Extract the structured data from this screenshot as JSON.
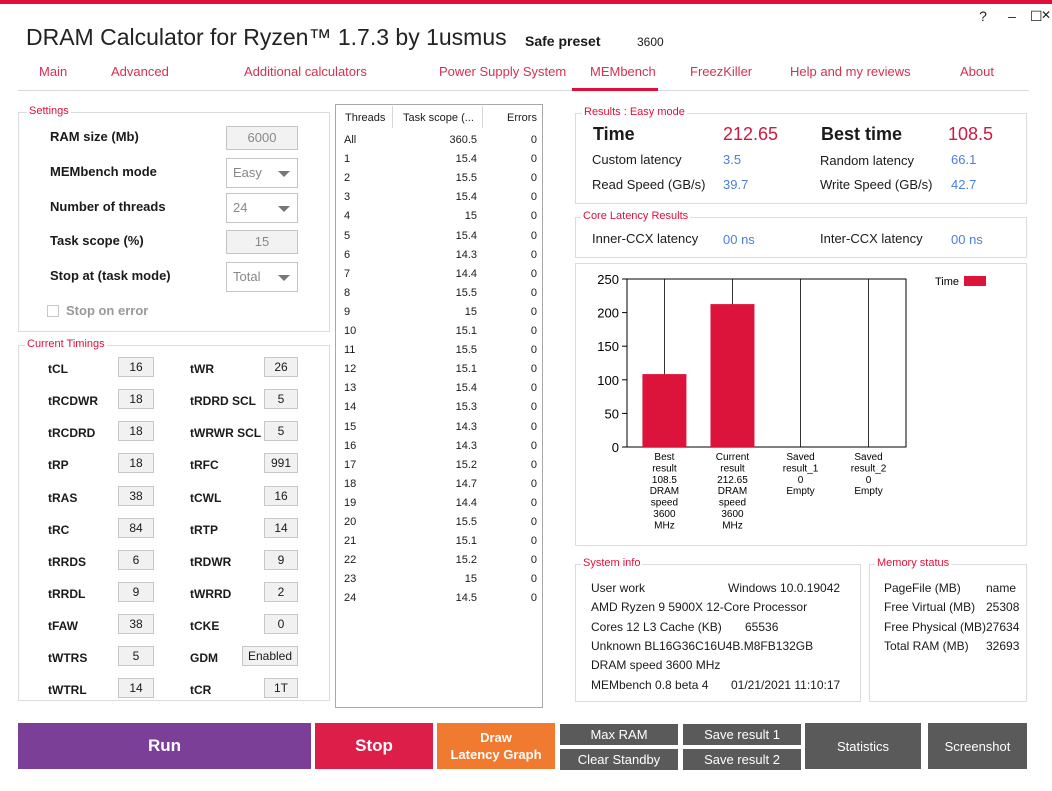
{
  "app": {
    "title": "DRAM Calculator for Ryzen™ 1.7.3 by 1usmus",
    "preset_label": "Safe preset",
    "preset_value": "3600",
    "window_controls": [
      "?",
      "–",
      "☐",
      "✕"
    ]
  },
  "nav": [
    "Main",
    "Advanced",
    "Additional calculators",
    "Power Supply System",
    "MEMbench",
    "FreezKiller",
    "Help and my reviews",
    "About"
  ],
  "nav_active": "MEMbench",
  "settings": {
    "title": "Settings",
    "ram_size_label": "RAM size (Mb)",
    "ram_size": "6000",
    "mode_label": "MEMbench mode",
    "mode": "Easy",
    "threads_label": "Number of threads",
    "threads": "24",
    "scope_label": "Task scope (%)",
    "scope": "15",
    "stop_label": "Stop at (task mode)",
    "stop": "Total",
    "stop_on_error": "Stop on error"
  },
  "timings": {
    "title": "Current Timings",
    "left": [
      {
        "label": "tCL",
        "value": "16"
      },
      {
        "label": "tRCDWR",
        "value": "18"
      },
      {
        "label": "tRCDRD",
        "value": "18"
      },
      {
        "label": "tRP",
        "value": "18"
      },
      {
        "label": "tRAS",
        "value": "38"
      },
      {
        "label": "tRC",
        "value": "84"
      },
      {
        "label": "tRRDS",
        "value": "6"
      },
      {
        "label": "tRRDL",
        "value": "9"
      },
      {
        "label": "tFAW",
        "value": "38"
      },
      {
        "label": "tWTRS",
        "value": "5"
      },
      {
        "label": "tWTRL",
        "value": "14"
      }
    ],
    "right": [
      {
        "label": "tWR",
        "value": "26"
      },
      {
        "label": "tRDRD SCL",
        "value": "5"
      },
      {
        "label": "tWRWR SCL",
        "value": "5"
      },
      {
        "label": "tRFC",
        "value": "991"
      },
      {
        "label": "tCWL",
        "value": "16"
      },
      {
        "label": "tRTP",
        "value": "14"
      },
      {
        "label": "tRDWR",
        "value": "9"
      },
      {
        "label": "tWRRD",
        "value": "2"
      },
      {
        "label": "tCKE",
        "value": "0"
      },
      {
        "label": "GDM",
        "value": "Enabled"
      },
      {
        "label": "tCR",
        "value": "1T"
      }
    ]
  },
  "threads_table": {
    "headers": [
      "Threads",
      "Task scope (...",
      "Errors"
    ],
    "rows": [
      [
        "All",
        "360.5",
        "0"
      ],
      [
        "1",
        "15.4",
        "0"
      ],
      [
        "2",
        "15.5",
        "0"
      ],
      [
        "3",
        "15.4",
        "0"
      ],
      [
        "4",
        "15",
        "0"
      ],
      [
        "5",
        "15.4",
        "0"
      ],
      [
        "6",
        "14.3",
        "0"
      ],
      [
        "7",
        "14.4",
        "0"
      ],
      [
        "8",
        "15.5",
        "0"
      ],
      [
        "9",
        "15",
        "0"
      ],
      [
        "10",
        "15.1",
        "0"
      ],
      [
        "11",
        "15.5",
        "0"
      ],
      [
        "12",
        "15.1",
        "0"
      ],
      [
        "13",
        "15.4",
        "0"
      ],
      [
        "14",
        "15.3",
        "0"
      ],
      [
        "15",
        "14.3",
        "0"
      ],
      [
        "16",
        "14.3",
        "0"
      ],
      [
        "17",
        "15.2",
        "0"
      ],
      [
        "18",
        "14.7",
        "0"
      ],
      [
        "19",
        "14.4",
        "0"
      ],
      [
        "20",
        "15.5",
        "0"
      ],
      [
        "21",
        "15.1",
        "0"
      ],
      [
        "22",
        "15.2",
        "0"
      ],
      [
        "23",
        "15",
        "0"
      ],
      [
        "24",
        "14.5",
        "0"
      ]
    ]
  },
  "results": {
    "title": "Results : Easy mode",
    "time_label": "Time",
    "time_value": "212.65",
    "best_label": "Best time",
    "best_value": "108.5",
    "custom_latency_label": "Custom latency",
    "custom_latency": "3.5",
    "random_latency_label": "Random latency",
    "random_latency": "66.1",
    "read_label": "Read Speed (GB/s)",
    "read_value": "39.7",
    "write_label": "Write Speed (GB/s)",
    "write_value": "42.7"
  },
  "core_latency": {
    "title": "Core Latency Results",
    "inner_label": "Inner-CCX latency",
    "inner_value": "00 ns",
    "inter_label": "Inter-CCX latency",
    "inter_value": "00 ns"
  },
  "chart_data": {
    "type": "bar",
    "categories": [
      [
        "Best",
        "result",
        "108.5",
        "DRAM",
        "speed",
        "3600",
        "MHz"
      ],
      [
        "Current",
        "result",
        "212.65",
        "DRAM",
        "speed",
        "3600",
        "MHz"
      ],
      [
        "Saved",
        "result_1",
        "0",
        "Empty"
      ],
      [
        "Saved",
        "result_2",
        "0",
        "Empty"
      ]
    ],
    "values": [
      108.5,
      212.65,
      0,
      0
    ],
    "legend": "Time",
    "legend_position": "top-right",
    "color": "#dc143c",
    "ylim": [
      0,
      250
    ],
    "yticks": [
      "0",
      "50",
      "100",
      "150",
      "200",
      "250"
    ],
    "grid": "vertical"
  },
  "system_info": {
    "title": "System info",
    "lines": [
      [
        "User work",
        "Windows 10.0.19042"
      ],
      [
        "AMD Ryzen 9 5900X 12-Core Processor",
        ""
      ],
      [
        "Cores 12    L3 Cache (KB)",
        "65536"
      ],
      [
        "Unknown BL16G36C16U4B.M8FB132GB",
        ""
      ],
      [
        "DRAM speed 3600 MHz",
        ""
      ],
      [
        "MEMbench 0.8 beta 4",
        "01/21/2021 11:10:17"
      ]
    ]
  },
  "memory_status": {
    "title": "Memory status",
    "rows": [
      [
        "PageFile (MB)",
        "name"
      ],
      [
        "Free Virtual (MB)",
        "25308"
      ],
      [
        "Free Physical (MB)",
        "27634"
      ],
      [
        "Total RAM (MB)",
        "32693"
      ]
    ]
  },
  "buttons": {
    "run": "Run",
    "stop": "Stop",
    "draw1": "Draw",
    "draw2": "Latency Graph",
    "max_ram": "Max RAM",
    "clear_standby": "Clear Standby",
    "save1": "Save result 1",
    "save2": "Save result 2",
    "statistics": "Statistics",
    "screenshot": "Screenshot",
    "colors": {
      "run": "#7b3f98",
      "stop": "#dc1e48",
      "draw": "#f07a30",
      "gray": "#5a5a5a"
    }
  }
}
